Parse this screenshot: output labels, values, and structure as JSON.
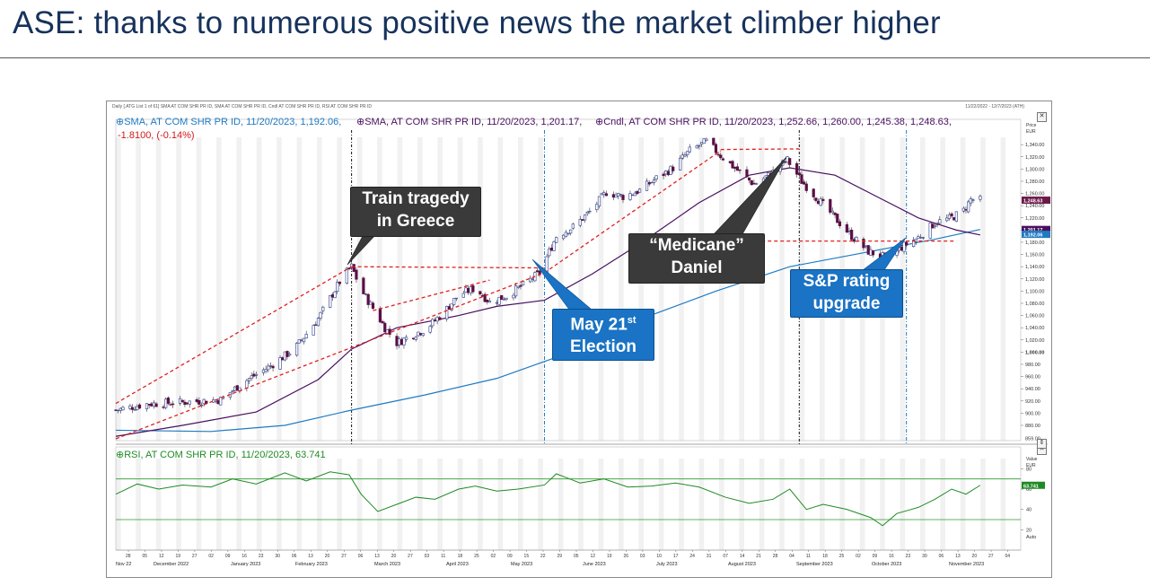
{
  "slide": {
    "title": "ASE: thanks to numerous positive news the market climber higher"
  },
  "chart_header": {
    "left": "Daily [.ATG List 1 of 61] SMA AT COM SHR PR ID, SMA AT COM SHR PR ID, Cndl AT COM SHR PR ID, RSI AT COM SHR PR ID",
    "right": "11/22/2022 - 12/7/2023 (ATH)"
  },
  "legend": {
    "sma1": "SMA, AT COM SHR PR ID, 11/20/2023, 1,192.06,",
    "sma2": "SMA, AT COM SHR PR ID, 11/20/2023, 1,201.17,",
    "candle": "Cndl, AT COM SHR PR ID, 11/20/2023, 1,252.66, 1,260.00, 1,245.38, 1,248.63,",
    "change": "-1.8100, (-0.14%)",
    "rsi": "RSI, AT COM SHR PR ID, 11/20/2023, 63.741"
  },
  "axis_units": {
    "price_title": "Price",
    "price_unit": "EUR",
    "rsi_title": "Value",
    "rsi_unit": "EUR",
    "auto_label": "Auto"
  },
  "callouts": {
    "train": [
      "Train tragedy",
      "in Greece"
    ],
    "election": {
      "line1": "May 21",
      "sup": "st",
      "line2": "Election"
    },
    "medicane": [
      "“Medicane”",
      "Daniel"
    ],
    "sp": [
      "S&P rating",
      "upgrade"
    ]
  },
  "chart_data": [
    {
      "type": "candlestick",
      "title": "",
      "price_ticks": [
        880,
        900,
        920,
        940,
        960,
        980,
        1000,
        1020,
        1040,
        1060,
        1080,
        1100,
        1120,
        1140,
        1160,
        1180,
        1200,
        1220,
        1240,
        1260,
        1280,
        1300,
        1320,
        1340
      ],
      "price_tick_labels": [
        "880.00",
        "900.00",
        "920.00",
        "940.00",
        "960.00",
        "980.00",
        "1,000.00",
        "1,020.00",
        "1,040.00",
        "1,060.00",
        "1,080.00",
        "1,100.00",
        "1,120.00",
        "1,140.00",
        "1,160.00",
        "1,180.00",
        "1,200.00",
        "1,220.00",
        "1,240.00",
        "1,260.00",
        "1,280.00",
        "1,300.00",
        "1,320.00",
        "1,340.00"
      ],
      "ylim": [
        855,
        1352
      ],
      "bottom_tick_label": "859.00",
      "last_price_label": "1,248.63",
      "sma_long_label": "1,201.17",
      "sma_short_label": "1,192.06",
      "close_path": [
        [
          "2022-11-22",
          905
        ],
        [
          "2022-12-05",
          915
        ],
        [
          "2022-12-20",
          918
        ],
        [
          "2023-01-05",
          922
        ],
        [
          "2023-01-15",
          952
        ],
        [
          "2023-01-25",
          975
        ],
        [
          "2023-02-05",
          1005
        ],
        [
          "2023-02-15",
          1055
        ],
        [
          "2023-02-25",
          1122
        ],
        [
          "2023-03-01",
          1140
        ],
        [
          "2023-03-05",
          1102
        ],
        [
          "2023-03-10",
          1072
        ],
        [
          "2023-03-15",
          1040
        ],
        [
          "2023-03-20",
          1015
        ],
        [
          "2023-03-25",
          1025
        ],
        [
          "2023-04-01",
          1038
        ],
        [
          "2023-04-08",
          1062
        ],
        [
          "2023-04-15",
          1094
        ],
        [
          "2023-04-22",
          1105
        ],
        [
          "2023-04-28",
          1082
        ],
        [
          "2023-05-05",
          1092
        ],
        [
          "2023-05-12",
          1110
        ],
        [
          "2023-05-19",
          1130
        ],
        [
          "2023-05-26",
          1190
        ],
        [
          "2023-06-02",
          1205
        ],
        [
          "2023-06-09",
          1230
        ],
        [
          "2023-06-16",
          1262
        ],
        [
          "2023-06-23",
          1255
        ],
        [
          "2023-06-30",
          1265
        ],
        [
          "2023-07-07",
          1285
        ],
        [
          "2023-07-14",
          1302
        ],
        [
          "2023-07-21",
          1330
        ],
        [
          "2023-07-28",
          1345
        ],
        [
          "2023-08-03",
          1322
        ],
        [
          "2023-08-10",
          1298
        ],
        [
          "2023-08-17",
          1275
        ],
        [
          "2023-08-24",
          1292
        ],
        [
          "2023-08-31",
          1315
        ],
        [
          "2023-09-06",
          1280
        ],
        [
          "2023-09-13",
          1250
        ],
        [
          "2023-09-20",
          1220
        ],
        [
          "2023-09-27",
          1190
        ],
        [
          "2023-10-04",
          1165
        ],
        [
          "2023-10-11",
          1155
        ],
        [
          "2023-10-18",
          1172
        ],
        [
          "2023-10-25",
          1188
        ],
        [
          "2023-11-01",
          1212
        ],
        [
          "2023-11-08",
          1220
        ],
        [
          "2023-11-13",
          1232
        ],
        [
          "2023-11-16",
          1250
        ],
        [
          "2023-11-20",
          1249
        ]
      ],
      "sma_short_path": [
        [
          "2022-11-22",
          862
        ],
        [
          "2022-12-20",
          880
        ],
        [
          "2023-01-20",
          902
        ],
        [
          "2023-02-15",
          955
        ],
        [
          "2023-03-01",
          1005
        ],
        [
          "2023-03-20",
          1040
        ],
        [
          "2023-04-15",
          1060
        ],
        [
          "2023-05-01",
          1075
        ],
        [
          "2023-05-21",
          1085
        ],
        [
          "2023-06-10",
          1128
        ],
        [
          "2023-07-01",
          1180
        ],
        [
          "2023-07-25",
          1245
        ],
        [
          "2023-08-15",
          1290
        ],
        [
          "2023-09-01",
          1302
        ],
        [
          "2023-09-20",
          1290
        ],
        [
          "2023-10-10",
          1250
        ],
        [
          "2023-10-25",
          1220
        ],
        [
          "2023-11-10",
          1200
        ],
        [
          "2023-11-20",
          1192
        ]
      ],
      "sma_long_path": [
        [
          "2022-11-22",
          872
        ],
        [
          "2023-01-01",
          870
        ],
        [
          "2023-02-01",
          880
        ],
        [
          "2023-03-01",
          905
        ],
        [
          "2023-04-01",
          930
        ],
        [
          "2023-05-01",
          957
        ],
        [
          "2023-06-01",
          1000
        ],
        [
          "2023-07-01",
          1055
        ],
        [
          "2023-08-01",
          1100
        ],
        [
          "2023-09-01",
          1140
        ],
        [
          "2023-10-01",
          1162
        ],
        [
          "2023-11-01",
          1185
        ],
        [
          "2023-11-20",
          1201
        ]
      ],
      "annotations": {
        "event_lines": [
          {
            "date": "2023-03-01",
            "color": "black",
            "label": "Train tragedy"
          },
          {
            "date": "2023-05-21",
            "color": "blue",
            "label": "May 21st Election"
          },
          {
            "date": "2023-09-05",
            "color": "black",
            "label": "Medicane Daniel"
          },
          {
            "date": "2023-10-20",
            "color": "blue",
            "label": "S&P rating upgrade"
          }
        ],
        "red_dashed": [
          [
            [
              "2022-11-22",
              916
            ],
            [
              "2023-03-01",
              1140
            ]
          ],
          [
            [
              "2022-11-22",
              858
            ],
            [
              "2023-05-21",
              1130
            ]
          ],
          [
            [
              "2023-03-01",
              1140
            ],
            [
              "2023-05-21",
              1138
            ]
          ],
          [
            [
              "2023-03-10",
              1068
            ],
            [
              "2023-04-28",
              1118
            ]
          ],
          [
            [
              "2023-05-21",
              1130
            ],
            [
              "2023-08-03",
              1330
            ]
          ],
          [
            [
              "2023-08-03",
              1332
            ],
            [
              "2023-09-05",
              1333
            ]
          ],
          [
            [
              "2023-07-01",
              1182
            ],
            [
              "2023-11-10",
              1182
            ]
          ]
        ]
      }
    },
    {
      "type": "line",
      "title": "",
      "ylim": [
        0,
        90
      ],
      "ticks": [
        20,
        40,
        60,
        80
      ],
      "overbought": 70,
      "oversold": 30,
      "last_value": 63.741,
      "last_value_label": "63.741",
      "path": [
        [
          "2022-11-22",
          55
        ],
        [
          "2022-12-01",
          65
        ],
        [
          "2022-12-10",
          60
        ],
        [
          "2022-12-20",
          64
        ],
        [
          "2023-01-01",
          62
        ],
        [
          "2023-01-10",
          70
        ],
        [
          "2023-01-20",
          65
        ],
        [
          "2023-02-01",
          76
        ],
        [
          "2023-02-10",
          68
        ],
        [
          "2023-02-20",
          77
        ],
        [
          "2023-02-28",
          74
        ],
        [
          "2023-03-05",
          55
        ],
        [
          "2023-03-12",
          38
        ],
        [
          "2023-03-20",
          45
        ],
        [
          "2023-03-28",
          52
        ],
        [
          "2023-04-05",
          50
        ],
        [
          "2023-04-15",
          60
        ],
        [
          "2023-04-22",
          63
        ],
        [
          "2023-05-01",
          58
        ],
        [
          "2023-05-10",
          60
        ],
        [
          "2023-05-21",
          64
        ],
        [
          "2023-05-26",
          75
        ],
        [
          "2023-06-05",
          66
        ],
        [
          "2023-06-15",
          70
        ],
        [
          "2023-06-25",
          62
        ],
        [
          "2023-07-05",
          63
        ],
        [
          "2023-07-15",
          66
        ],
        [
          "2023-07-25",
          62
        ],
        [
          "2023-08-05",
          52
        ],
        [
          "2023-08-15",
          46
        ],
        [
          "2023-08-25",
          50
        ],
        [
          "2023-09-01",
          60
        ],
        [
          "2023-09-08",
          40
        ],
        [
          "2023-09-15",
          45
        ],
        [
          "2023-09-25",
          40
        ],
        [
          "2023-10-05",
          32
        ],
        [
          "2023-10-10",
          24
        ],
        [
          "2023-10-16",
          36
        ],
        [
          "2023-10-25",
          42
        ],
        [
          "2023-11-01",
          50
        ],
        [
          "2023-11-08",
          60
        ],
        [
          "2023-11-14",
          55
        ],
        [
          "2023-11-20",
          63.741
        ]
      ]
    }
  ],
  "x_axis": {
    "day_ticks": [
      "28",
      "05",
      "12",
      "19",
      "27",
      "02",
      "09",
      "16",
      "23",
      "30",
      "06",
      "13",
      "20",
      "27",
      "06",
      "13",
      "20",
      "27",
      "03",
      "11",
      "18",
      "25",
      "02",
      "09",
      "15",
      "22",
      "29",
      "05",
      "12",
      "19",
      "26",
      "03",
      "10",
      "17",
      "24",
      "31",
      "07",
      "14",
      "21",
      "28",
      "04",
      "11",
      "18",
      "25",
      "02",
      "09",
      "16",
      "23",
      "30",
      "06",
      "13",
      "20",
      "27",
      "04"
    ],
    "month_labels": [
      "Nov 22",
      "December 2022",
      "January 2023",
      "February 2023",
      "March 2023",
      "April 2023",
      "May 2023",
      "June 2023",
      "July 2023",
      "August 2023",
      "September 2023",
      "October 2023",
      "November 2023"
    ]
  }
}
